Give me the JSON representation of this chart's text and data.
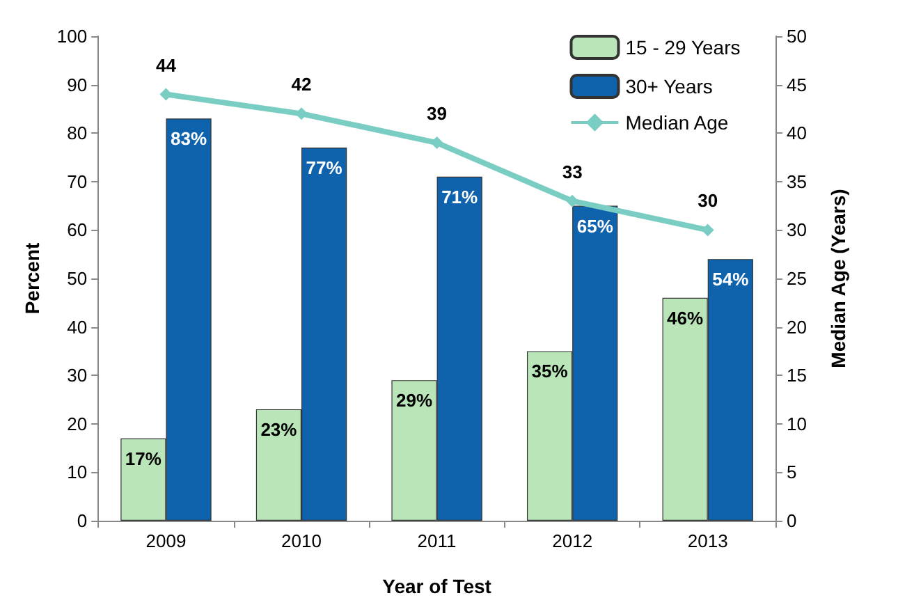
{
  "chart_data": {
    "type": "bar",
    "categories": [
      "2009",
      "2010",
      "2011",
      "2012",
      "2013"
    ],
    "series": [
      {
        "name": "15 - 29 Years",
        "color": "#b9e5b9",
        "values": [
          17,
          23,
          29,
          35,
          46
        ],
        "value_labels": [
          "17%",
          "23%",
          "29%",
          "35%",
          "46%"
        ]
      },
      {
        "name": "30+ Years",
        "color": "#0f63ad",
        "values": [
          83,
          77,
          71,
          65,
          54
        ],
        "value_labels": [
          "83%",
          "77%",
          "71%",
          "65%",
          "54%"
        ]
      },
      {
        "name": "Median Age",
        "type": "line",
        "axis": "y2",
        "color": "#79cdc3",
        "values": [
          44,
          42,
          39,
          33,
          30
        ],
        "value_labels": [
          "44",
          "42",
          "39",
          "33",
          "30"
        ]
      }
    ],
    "xlabel": "Year of Test",
    "ylabel": "Percent",
    "y2label": "Median Age (Years)",
    "ylim": [
      0,
      100
    ],
    "yticks": [
      0,
      10,
      20,
      30,
      40,
      50,
      60,
      70,
      80,
      90,
      100
    ],
    "y2lim": [
      0,
      50
    ],
    "y2ticks": [
      0,
      5,
      10,
      15,
      20,
      25,
      30,
      35,
      40,
      45,
      50
    ],
    "legend": "top right",
    "marker": "diamond",
    "grid": false
  }
}
